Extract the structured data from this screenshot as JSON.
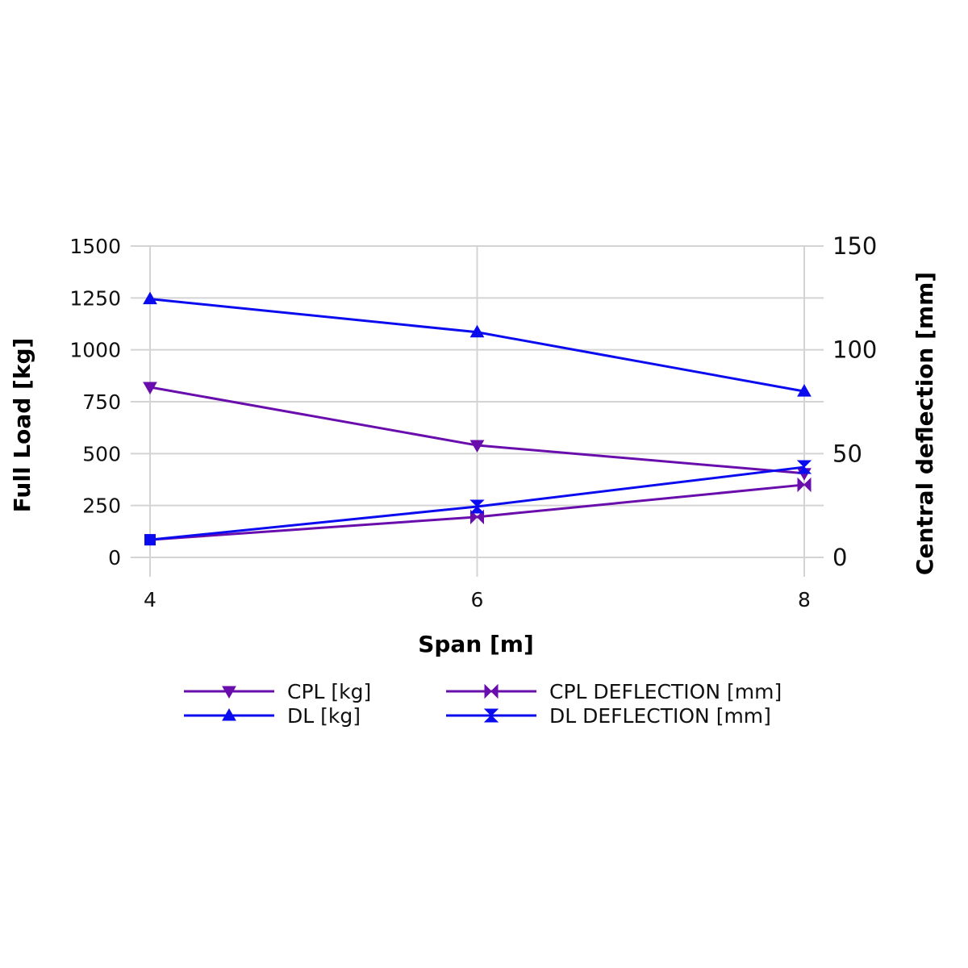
{
  "chart_data": {
    "type": "line",
    "x": [
      4,
      6,
      8
    ],
    "xlabel": "Span [m]",
    "ylabel": "Full Load [kg]",
    "ylabel_right": "Central deflection [mm]",
    "ylim": [
      0,
      1500
    ],
    "ylim_right": [
      0,
      150
    ],
    "yticks": [
      "0",
      "250",
      "500",
      "750",
      "1000",
      "1250",
      "1500"
    ],
    "yticks_right": [
      "0",
      "50",
      "100",
      "150"
    ],
    "xticks": [
      "4",
      "6",
      "8"
    ],
    "grid": true,
    "legend_position": "bottom",
    "series": [
      {
        "name": "CPL [kg]",
        "axis": "left",
        "values": [
          820,
          540,
          405
        ],
        "color": "#6a0dad",
        "marker": "triangle-down"
      },
      {
        "name": "DL [kg]",
        "axis": "left",
        "values": [
          1245,
          1085,
          800
        ],
        "color": "#0b0bf0",
        "marker": "triangle-up"
      },
      {
        "name": "CPL DEFLECTION [mm]",
        "axis": "right",
        "values": [
          8.5,
          19.5,
          35
        ],
        "color": "#6a0dad",
        "marker": "bowtie"
      },
      {
        "name": "DL DEFLECTION [mm]",
        "axis": "right",
        "values": [
          8.5,
          24.5,
          43.5
        ],
        "color": "#0b0bf0",
        "marker": "hourglass"
      }
    ]
  }
}
